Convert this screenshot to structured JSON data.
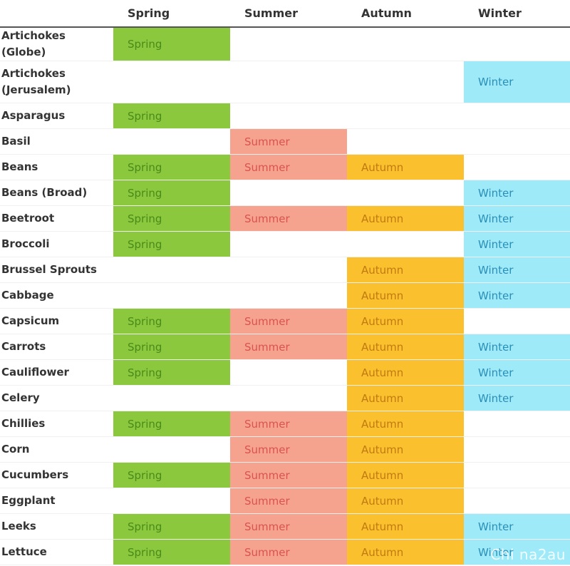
{
  "headers": [
    "",
    "Spring",
    "Summer",
    "Autumn",
    "Winter"
  ],
  "rows": [
    {
      "name": "Artichokes (Globe)",
      "sp": "Spring",
      "su": "",
      "au": "",
      "wi": ""
    },
    {
      "name": "Artichokes (Jerusalem)",
      "sp": "",
      "su": "",
      "au": "",
      "wi": "Winter"
    },
    {
      "name": "Asparagus",
      "sp": "Spring",
      "su": "",
      "au": "",
      "wi": ""
    },
    {
      "name": "Basil",
      "sp": "",
      "su": "Summer",
      "au": "",
      "wi": ""
    },
    {
      "name": "Beans",
      "sp": "Spring",
      "su": "Summer",
      "au": "Autumn",
      "wi": ""
    },
    {
      "name": "Beans (Broad)",
      "sp": "Spring",
      "su": "",
      "au": "",
      "wi": "Winter"
    },
    {
      "name": "Beetroot",
      "sp": "Spring",
      "su": "Summer",
      "au": "Autumn",
      "wi": "Winter"
    },
    {
      "name": "Broccoli",
      "sp": "Spring",
      "su": "",
      "au": "",
      "wi": "Winter"
    },
    {
      "name": "Brussel Sprouts",
      "sp": "",
      "su": "",
      "au": "Autumn",
      "wi": "Winter"
    },
    {
      "name": "Cabbage",
      "sp": "",
      "su": "",
      "au": "Autumn",
      "wi": "Winter"
    },
    {
      "name": "Capsicum",
      "sp": "Spring",
      "su": "Summer",
      "au": "Autumn",
      "wi": ""
    },
    {
      "name": "Carrots",
      "sp": "Spring",
      "su": "Summer",
      "au": "Autumn",
      "wi": "Winter"
    },
    {
      "name": "Cauliflower",
      "sp": "Spring",
      "su": "",
      "au": "Autumn",
      "wi": "Winter"
    },
    {
      "name": "Celery",
      "sp": "",
      "su": "",
      "au": "Autumn",
      "wi": "Winter"
    },
    {
      "name": "Chillies",
      "sp": "Spring",
      "su": "Summer",
      "au": "Autumn",
      "wi": ""
    },
    {
      "name": "Corn",
      "sp": "",
      "su": "Summer",
      "au": "Autumn",
      "wi": ""
    },
    {
      "name": "Cucumbers",
      "sp": "Spring",
      "su": "Summer",
      "au": "Autumn",
      "wi": ""
    },
    {
      "name": "Eggplant",
      "sp": "",
      "su": "Summer",
      "au": "Autumn",
      "wi": ""
    },
    {
      "name": "Leeks",
      "sp": "Spring",
      "su": "Summer",
      "au": "Autumn",
      "wi": "Winter"
    },
    {
      "name": "Lettuce",
      "sp": "Spring",
      "su": "Summer",
      "au": "Autumn",
      "wi": "Winter"
    }
  ],
  "colors": {
    "spring": "#8bc83d",
    "summer": "#f5a38f",
    "autumn": "#fbc02d",
    "winter": "#9feaf8"
  },
  "watermark": "Chi na2au"
}
